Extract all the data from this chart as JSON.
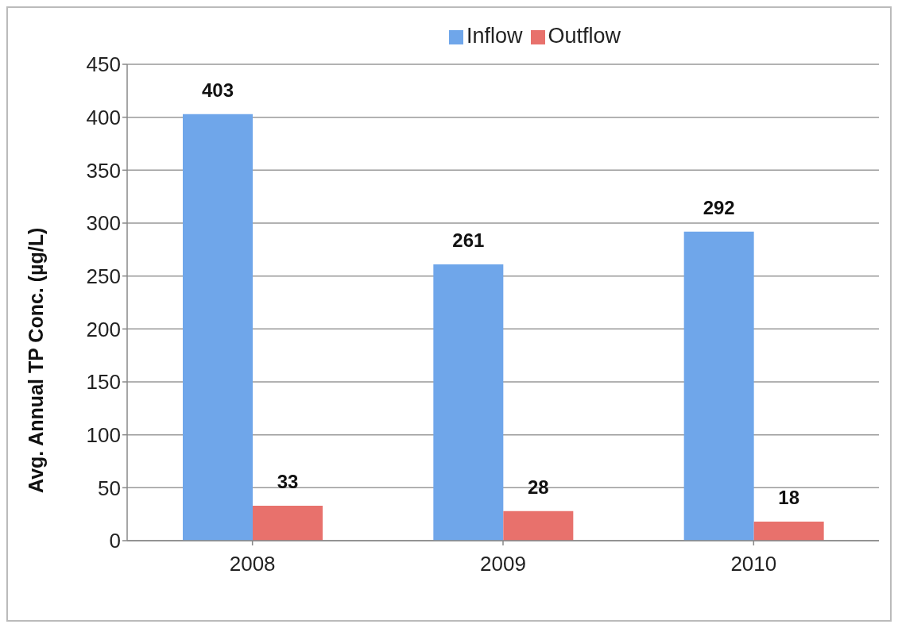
{
  "chart_data": {
    "type": "bar",
    "ylabel": "Avg. Annual TP Conc. (µg/L)",
    "categories": [
      "2008",
      "2009",
      "2010"
    ],
    "series": [
      {
        "name": "Inflow",
        "color": "#6fa6ea",
        "values": [
          403,
          261,
          292
        ]
      },
      {
        "name": "Outflow",
        "color": "#e8716c",
        "values": [
          33,
          28,
          18
        ]
      }
    ],
    "ylim": [
      0,
      450
    ],
    "yticks": [
      0,
      50,
      100,
      150,
      200,
      250,
      300,
      350,
      400,
      450
    ],
    "grid": "y",
    "legend": "top",
    "data_labels": true
  }
}
